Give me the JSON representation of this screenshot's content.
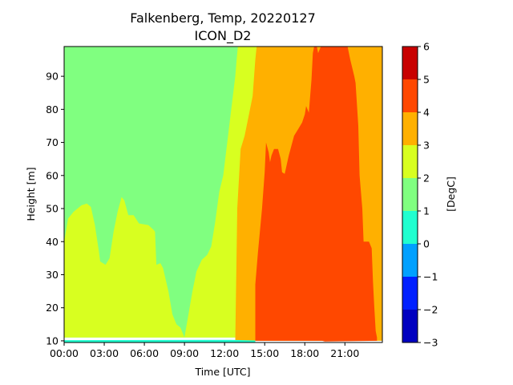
{
  "chart_data": {
    "type": "heatmap",
    "title_line1": "Falkenberg, Temp, 20220127",
    "title_line2": "ICON_D2",
    "xlabel": "Time [UTC]",
    "ylabel": "Height [m]",
    "colorbar_label": "[DegC]",
    "xlim": [
      0,
      23.8
    ],
    "ylim": [
      9.5,
      99
    ],
    "x_ticks": [
      0,
      3,
      6,
      9,
      12,
      15,
      18,
      21
    ],
    "x_tick_labels": [
      "00:00",
      "03:00",
      "06:00",
      "09:00",
      "12:00",
      "15:00",
      "18:00",
      "21:00"
    ],
    "y_ticks": [
      10,
      20,
      30,
      40,
      50,
      60,
      70,
      80,
      90
    ],
    "y_tick_labels": [
      "10",
      "20",
      "30",
      "40",
      "50",
      "60",
      "70",
      "80",
      "90"
    ],
    "levels": [
      -3,
      -2,
      -1,
      0,
      1,
      2,
      3,
      4,
      5,
      6
    ],
    "level_labels": [
      "−3",
      "−2",
      "−1",
      "0",
      "1",
      "2",
      "3",
      "4",
      "5",
      "6"
    ],
    "level_colors": [
      "#0000c0",
      "#0020ff",
      "#00a0ff",
      "#20ffd0",
      "#80ff80",
      "#d8ff20",
      "#ffb000",
      "#ff4800",
      "#c80000"
    ],
    "regions": [
      {
        "name": "1 to 2 DegC",
        "band": 4,
        "polygon": [
          [
            0,
            99
          ],
          [
            0,
            11
          ],
          [
            23.8,
            11
          ],
          [
            23.8,
            99
          ]
        ]
      },
      {
        "name": "2 to 3 DegC",
        "band": 5,
        "polygon": [
          [
            0,
            10
          ],
          [
            0,
            40
          ],
          [
            0.3,
            47
          ],
          [
            0.7,
            49
          ],
          [
            1.3,
            51
          ],
          [
            1.7,
            51.5
          ],
          [
            2.0,
            50.5
          ],
          [
            2.3,
            45
          ],
          [
            2.6,
            37
          ],
          [
            2.7,
            34
          ],
          [
            3.1,
            33
          ],
          [
            3.4,
            35
          ],
          [
            3.7,
            43
          ],
          [
            4.0,
            49
          ],
          [
            4.3,
            53.5
          ],
          [
            4.5,
            52.5
          ],
          [
            4.8,
            48
          ],
          [
            5.2,
            48
          ],
          [
            5.6,
            45.5
          ],
          [
            6.3,
            45
          ],
          [
            6.7,
            43.5
          ],
          [
            6.8,
            43
          ],
          [
            6.9,
            33
          ],
          [
            7.2,
            33.5
          ],
          [
            7.4,
            32
          ],
          [
            7.8,
            25
          ],
          [
            8.1,
            18
          ],
          [
            8.4,
            15
          ],
          [
            8.7,
            14
          ],
          [
            9.0,
            11
          ],
          [
            9.3,
            18
          ],
          [
            9.6,
            25
          ],
          [
            9.9,
            31
          ],
          [
            10.3,
            34.5
          ],
          [
            10.7,
            36
          ],
          [
            11.0,
            38.5
          ],
          [
            11.3,
            46
          ],
          [
            11.6,
            55
          ],
          [
            11.9,
            60
          ],
          [
            12.2,
            70
          ],
          [
            12.5,
            80
          ],
          [
            12.8,
            90
          ],
          [
            12.9,
            95
          ],
          [
            13.0,
            99
          ],
          [
            14.4,
            99
          ],
          [
            14.4,
            11
          ],
          [
            13.0,
            11
          ],
          [
            0,
            11
          ]
        ]
      },
      {
        "name": "3 to 4 DegC",
        "band": 6,
        "polygon": [
          [
            12.8,
            10
          ],
          [
            12.95,
            50
          ],
          [
            13.2,
            68
          ],
          [
            13.5,
            72
          ],
          [
            13.8,
            78
          ],
          [
            14.1,
            84
          ],
          [
            14.3,
            95
          ],
          [
            14.4,
            99
          ],
          [
            23.8,
            99
          ],
          [
            23.8,
            10
          ]
        ]
      },
      {
        "name": "4 to 5 DegC",
        "band": 7,
        "polygon": [
          [
            14.3,
            10
          ],
          [
            14.3,
            27
          ],
          [
            14.5,
            37
          ],
          [
            14.8,
            50
          ],
          [
            15.0,
            61
          ],
          [
            15.1,
            70
          ],
          [
            15.3,
            67
          ],
          [
            15.4,
            64
          ],
          [
            15.5,
            66
          ],
          [
            15.7,
            68
          ],
          [
            16.0,
            68
          ],
          [
            16.2,
            65
          ],
          [
            16.3,
            61
          ],
          [
            16.5,
            60.5
          ],
          [
            16.8,
            66
          ],
          [
            17.2,
            72
          ],
          [
            17.5,
            74
          ],
          [
            17.8,
            76
          ],
          [
            18.0,
            78.5
          ],
          [
            18.1,
            81
          ],
          [
            18.3,
            79
          ],
          [
            18.5,
            89
          ],
          [
            18.6,
            97
          ],
          [
            18.7,
            99
          ],
          [
            18.9,
            99
          ],
          [
            19.0,
            97
          ],
          [
            19.2,
            99
          ],
          [
            21.2,
            99
          ],
          [
            21.4,
            95
          ],
          [
            21.7,
            90
          ],
          [
            21.8,
            88
          ],
          [
            22.0,
            75
          ],
          [
            22.1,
            60
          ],
          [
            22.3,
            50
          ],
          [
            22.4,
            40
          ],
          [
            22.8,
            40
          ],
          [
            23.0,
            38
          ],
          [
            23.1,
            28
          ],
          [
            23.2,
            20
          ],
          [
            23.3,
            13
          ],
          [
            23.4,
            11
          ],
          [
            23.4,
            10
          ],
          [
            19.5,
            9.8
          ],
          [
            19.3,
            10
          ],
          [
            14.3,
            10
          ]
        ]
      },
      {
        "name": "0 to 1 DegC",
        "band": 3,
        "polygon": [
          [
            0,
            9.5
          ],
          [
            0,
            10.2
          ],
          [
            12.5,
            10.3
          ],
          [
            14.3,
            10.1
          ],
          [
            14.3,
            9.5
          ]
        ]
      }
    ]
  }
}
